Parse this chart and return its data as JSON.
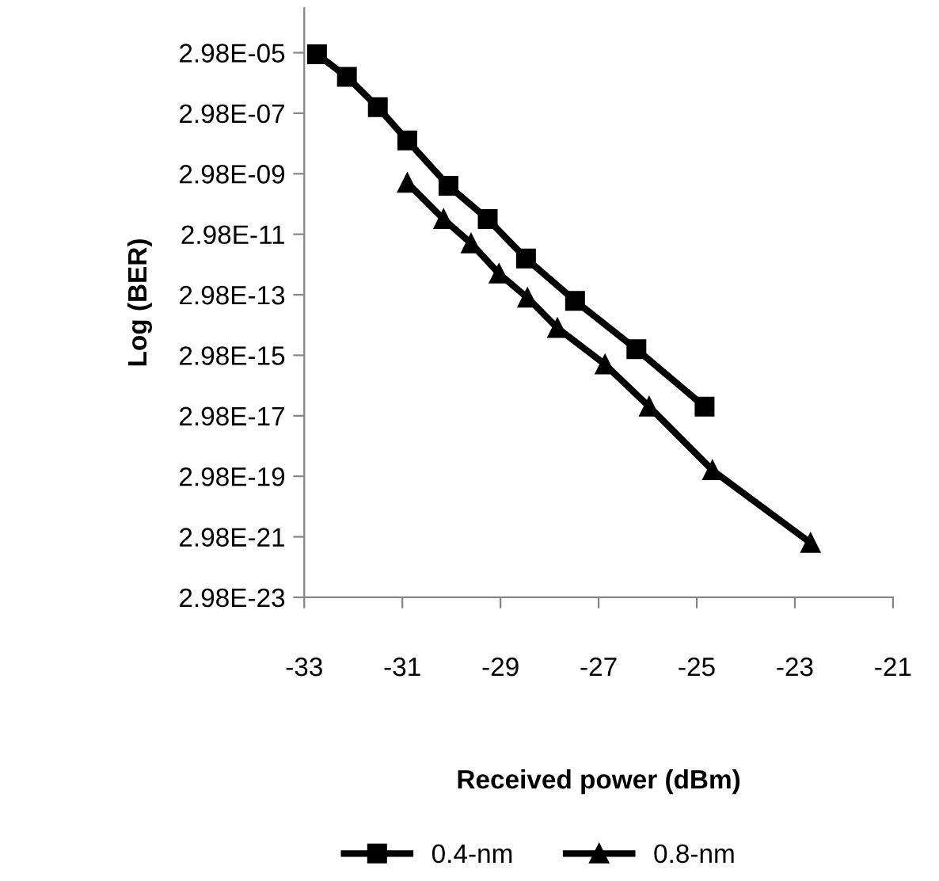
{
  "chart_data": {
    "type": "line",
    "xlabel": "Received power (dBm)",
    "ylabel": "Log (BER)",
    "log": "y",
    "xlim": [
      -33,
      -21
    ],
    "xticks": [
      -33,
      -31,
      -29,
      -27,
      -25,
      -23,
      -21
    ],
    "ylim": [
      2.98e-23,
      0.0009
    ],
    "yticks": [
      {
        "value": 2.98e-05,
        "label": "2.98E-05"
      },
      {
        "value": 2.98e-07,
        "label": "2.98E-07"
      },
      {
        "value": 2.98e-09,
        "label": "2.98E-09"
      },
      {
        "value": 2.98e-11,
        "label": "2.98E-11"
      },
      {
        "value": 2.98e-13,
        "label": "2.98E-13"
      },
      {
        "value": 2.98e-15,
        "label": "2.98E-15"
      },
      {
        "value": 2.98e-17,
        "label": "2.98E-17"
      },
      {
        "value": 2.98e-19,
        "label": "2.98E-19"
      },
      {
        "value": 2.98e-21,
        "label": "2.98E-21"
      },
      {
        "value": 2.98e-23,
        "label": "2.98E-23"
      }
    ],
    "grid": false,
    "legend": "bottom",
    "line_style": "solid",
    "series": [
      {
        "name": "0.4-nm",
        "color": "#000000",
        "marker": "square",
        "x": [
          -32.74,
          -32.13,
          -31.5,
          -30.9,
          -30.06,
          -29.26,
          -28.48,
          -27.48,
          -26.23,
          -24.84
        ],
        "values": [
          2.66e-05,
          4.72e-06,
          4.72e-07,
          3.75e-08,
          1.19e-09,
          9.42e-11,
          4.72e-12,
          1.88e-13,
          4.72e-15,
          5.96e-17
        ]
      },
      {
        "name": "0.8-nm",
        "color": "#000000",
        "marker": "triangle",
        "x": [
          -30.9,
          -30.16,
          -29.6,
          -29.03,
          -28.45,
          -27.84,
          -26.87,
          -25.97,
          -24.68,
          -22.68
        ],
        "values": [
          1.49e-09,
          9.42e-11,
          1.49e-11,
          1.49e-12,
          2.37e-13,
          2.37e-14,
          1.49e-15,
          5.96e-17,
          4.72e-19,
          1.88e-21
        ]
      }
    ]
  }
}
